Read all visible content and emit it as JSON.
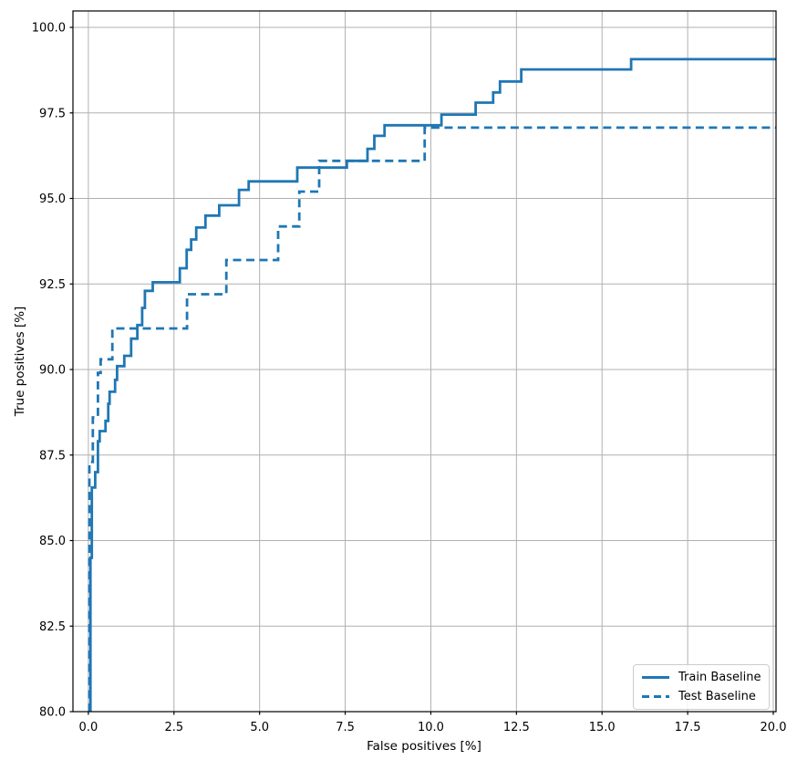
{
  "figure": {
    "background": "#ffffff",
    "grid_color": "#b0b0b0",
    "spine_color": "#000000",
    "accent_color": "#1f77b4"
  },
  "chart_data": {
    "type": "line",
    "subtype": "step-roc-curve",
    "title": "",
    "xlabel": "False positives [%]",
    "ylabel": "True positives [%]",
    "xlim": [
      -0.45,
      20.08
    ],
    "ylim": [
      80.0,
      100.48
    ],
    "grid": true,
    "x_tick_values": [
      0,
      2.5,
      5,
      7.5,
      10,
      12.5,
      15,
      17.5,
      20
    ],
    "x_tick_labels": [
      "0.0",
      "2.5",
      "5.0",
      "7.5",
      "10.0",
      "12.5",
      "15.0",
      "17.5",
      "20.0"
    ],
    "y_tick_values": [
      80,
      82.5,
      85,
      87.5,
      90,
      92.5,
      95,
      97.5,
      100
    ],
    "y_tick_labels": [
      "80.0",
      "82.5",
      "85.0",
      "87.5",
      "90.0",
      "92.5",
      "95.0",
      "97.5",
      "100.0"
    ],
    "legend": {
      "position": "lower right",
      "items": [
        {
          "label": "Train Baseline",
          "style": "solid"
        },
        {
          "label": "Test Baseline",
          "style": "dashed"
        }
      ]
    },
    "series": [
      {
        "name": "Train Baseline",
        "color": "#1f77b4",
        "line_style": "solid",
        "line_width": 2.8,
        "points": [
          [
            0.06,
            80
          ],
          [
            0.06,
            84.5
          ],
          [
            0.1,
            84.5
          ],
          [
            0.1,
            86.55
          ],
          [
            0.2,
            86.55
          ],
          [
            0.2,
            87.0
          ],
          [
            0.28,
            87.0
          ],
          [
            0.28,
            87.9
          ],
          [
            0.33,
            87.9
          ],
          [
            0.33,
            88.2
          ],
          [
            0.5,
            88.2
          ],
          [
            0.5,
            88.5
          ],
          [
            0.58,
            88.5
          ],
          [
            0.58,
            89.0
          ],
          [
            0.62,
            89.0
          ],
          [
            0.62,
            89.35
          ],
          [
            0.78,
            89.35
          ],
          [
            0.78,
            89.7
          ],
          [
            0.84,
            89.7
          ],
          [
            0.84,
            90.1
          ],
          [
            1.05,
            90.1
          ],
          [
            1.05,
            90.4
          ],
          [
            1.25,
            90.4
          ],
          [
            1.25,
            90.9
          ],
          [
            1.43,
            90.9
          ],
          [
            1.43,
            91.3
          ],
          [
            1.57,
            91.3
          ],
          [
            1.57,
            91.8
          ],
          [
            1.65,
            91.8
          ],
          [
            1.65,
            92.3
          ],
          [
            1.88,
            92.3
          ],
          [
            1.88,
            92.55
          ],
          [
            2.67,
            92.55
          ],
          [
            2.67,
            92.96
          ],
          [
            2.87,
            92.96
          ],
          [
            2.87,
            93.5
          ],
          [
            3.0,
            93.5
          ],
          [
            3.0,
            93.8
          ],
          [
            3.15,
            93.8
          ],
          [
            3.15,
            94.15
          ],
          [
            3.42,
            94.15
          ],
          [
            3.42,
            94.5
          ],
          [
            3.82,
            94.5
          ],
          [
            3.82,
            94.8
          ],
          [
            4.4,
            94.8
          ],
          [
            4.4,
            95.25
          ],
          [
            4.68,
            95.25
          ],
          [
            4.68,
            95.5
          ],
          [
            6.1,
            95.5
          ],
          [
            6.1,
            95.9
          ],
          [
            7.55,
            95.9
          ],
          [
            7.55,
            96.1
          ],
          [
            8.15,
            96.1
          ],
          [
            8.15,
            96.45
          ],
          [
            8.35,
            96.45
          ],
          [
            8.35,
            96.83
          ],
          [
            8.65,
            96.83
          ],
          [
            8.65,
            97.14
          ],
          [
            10.31,
            97.14
          ],
          [
            10.31,
            97.45
          ],
          [
            11.31,
            97.45
          ],
          [
            11.31,
            97.8
          ],
          [
            11.82,
            97.8
          ],
          [
            11.82,
            98.1
          ],
          [
            12.02,
            98.1
          ],
          [
            12.02,
            98.42
          ],
          [
            12.64,
            98.42
          ],
          [
            12.64,
            98.77
          ],
          [
            15.85,
            98.77
          ],
          [
            15.85,
            99.07
          ],
          [
            20.08,
            99.07
          ]
        ]
      },
      {
        "name": "Test Baseline",
        "color": "#1f77b4",
        "line_style": "dashed",
        "line_width": 2.8,
        "points": [
          [
            0.03,
            80
          ],
          [
            0.03,
            87.3
          ],
          [
            0.13,
            87.3
          ],
          [
            0.13,
            88.6
          ],
          [
            0.28,
            88.6
          ],
          [
            0.28,
            89.9
          ],
          [
            0.36,
            89.9
          ],
          [
            0.36,
            90.3
          ],
          [
            0.7,
            90.3
          ],
          [
            0.7,
            91.2
          ],
          [
            2.88,
            91.2
          ],
          [
            2.88,
            92.2
          ],
          [
            4.03,
            92.2
          ],
          [
            4.03,
            93.2
          ],
          [
            5.54,
            93.2
          ],
          [
            5.54,
            94.18
          ],
          [
            6.16,
            94.18
          ],
          [
            6.16,
            95.2
          ],
          [
            6.74,
            95.2
          ],
          [
            6.74,
            96.1
          ],
          [
            9.82,
            96.1
          ],
          [
            9.82,
            97.07
          ],
          [
            20.08,
            97.07
          ]
        ]
      }
    ]
  }
}
